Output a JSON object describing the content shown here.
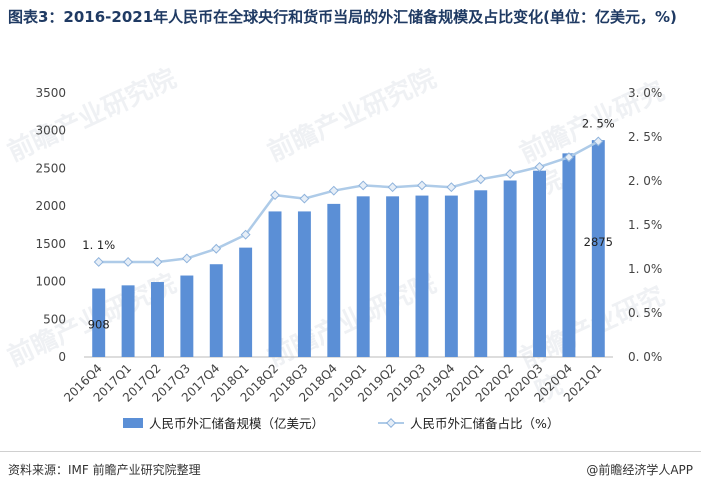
{
  "title": "图表3：2016-2021年人民币在全球央行和货币当局的外汇储备规模及占比变化(单位：亿美元，%)",
  "source_text": "资料来源：IMF 前瞻产业研究院整理",
  "brand_text": "@前瞻经济学人APP",
  "watermark_text": "前瞻产业研究院",
  "chart_data": {
    "type": "bar+line",
    "categories": [
      "2016Q4",
      "2017Q1",
      "2017Q2",
      "2017Q3",
      "2017Q4",
      "2018Q1",
      "2018Q2",
      "2018Q3",
      "2018Q4",
      "2019Q1",
      "2019Q2",
      "2019Q3",
      "2019Q4",
      "2020Q1",
      "2020Q2",
      "2020Q3",
      "2020Q4",
      "2021Q1"
    ],
    "category_labels": [
      "2016Q4",
      "2017Q1",
      "2017Q2",
      "2017Q3",
      "2017Q4",
      "2018Q1",
      "2018Q2",
      "2018Q3",
      "2018Q4",
      "2019Q1",
      "2019Q2",
      "2019Q3",
      "2019Q4",
      "2020Q1",
      "2020Q2",
      "2020Q3",
      "2020Q4",
      "2021Q1"
    ],
    "series": [
      {
        "name": "人民币外汇储备规模（亿美元）",
        "type": "bar",
        "axis": "left",
        "color": "#5b8fd6",
        "values": [
          908,
          950,
          994,
          1080,
          1230,
          1450,
          1930,
          1930,
          2030,
          2130,
          2130,
          2140,
          2140,
          2210,
          2340,
          2470,
          2700,
          2875
        ]
      },
      {
        "name": "人民币外汇储备占比（%）",
        "type": "line",
        "axis": "right",
        "color": "#aecbe8",
        "values": [
          1.08,
          1.08,
          1.08,
          1.12,
          1.23,
          1.39,
          1.84,
          1.8,
          1.89,
          1.95,
          1.93,
          1.95,
          1.93,
          2.02,
          2.08,
          2.16,
          2.27,
          2.45
        ]
      }
    ],
    "ylim_left": [
      0,
      3500
    ],
    "yticks_left": [
      "0",
      "500",
      "1000",
      "1500",
      "2000",
      "2500",
      "3000",
      "3500"
    ],
    "ylim_right": [
      0,
      3.0
    ],
    "yticks_right": [
      "0. 0%",
      "0. 5%",
      "1. 0%",
      "1. 5%",
      "2. 0%",
      "2. 5%",
      "3. 0%"
    ],
    "annotations": {
      "first_bar": "908",
      "last_bar": "2875",
      "first_point": "1. 1%",
      "last_point": "2. 5%"
    },
    "grid": false,
    "legend": "bottom"
  }
}
